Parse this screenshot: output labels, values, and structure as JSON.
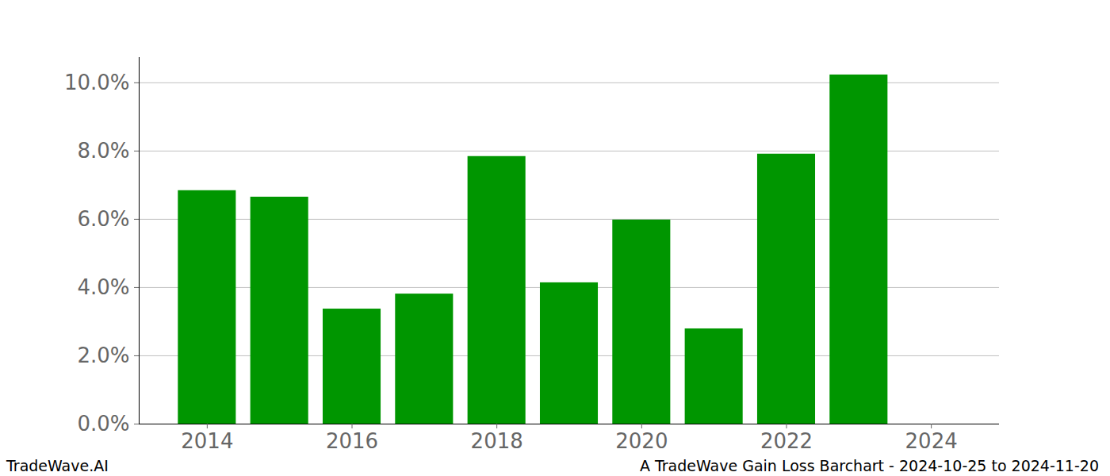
{
  "chart_data": {
    "type": "bar",
    "source": "TradeWave.AI",
    "caption": "A TradeWave Gain Loss Barchart - 2024-10-25 to 2024-11-20",
    "x": [
      2014,
      2015,
      2016,
      2017,
      2018,
      2019,
      2020,
      2021,
      2022,
      2023,
      2024
    ],
    "values": [
      6.84,
      6.65,
      3.37,
      3.81,
      7.84,
      4.14,
      5.98,
      2.79,
      7.91,
      10.23,
      0
    ],
    "color": "#009600",
    "xlim": [
      2013.06,
      2024.94
    ],
    "xticks": [
      2014,
      2016,
      2018,
      2020,
      2022,
      2024
    ],
    "ylim": [
      0,
      10.74
    ],
    "yticks": [
      {
        "value": 0,
        "label": "0.0%"
      },
      {
        "value": 2,
        "label": "2.0%"
      },
      {
        "value": 4,
        "label": "4.0%"
      },
      {
        "value": 6,
        "label": "6.0%"
      },
      {
        "value": 8,
        "label": "8.0%"
      },
      {
        "value": 10,
        "label": "10.0%"
      }
    ],
    "grid": true
  }
}
